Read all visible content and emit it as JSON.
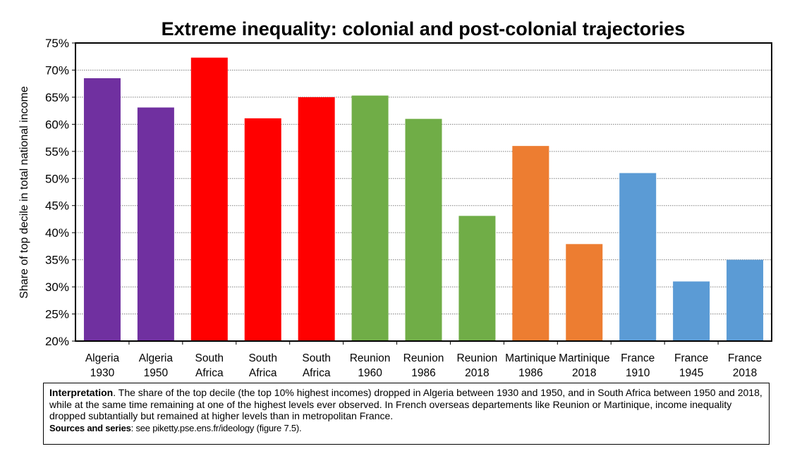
{
  "chart_data": {
    "type": "bar",
    "title": "Extreme inequality: colonial and post-colonial trajectories",
    "ylabel": "Share of top decile in total national income",
    "xlabel": "",
    "ylim": [
      0.2,
      0.75
    ],
    "ytick_labels": [
      "20%",
      "25%",
      "30%",
      "35%",
      "40%",
      "45%",
      "50%",
      "55%",
      "60%",
      "65%",
      "70%",
      "75%"
    ],
    "grid": "horizontal dotted",
    "categories": [
      [
        "Algeria",
        "1930"
      ],
      [
        "Algeria",
        "1950"
      ],
      [
        "South",
        "Africa"
      ],
      [
        "South",
        "Africa"
      ],
      [
        "South",
        "Africa"
      ],
      [
        "Reunion",
        "1960"
      ],
      [
        "Reunion",
        "1986"
      ],
      [
        "Reunion",
        "2018"
      ],
      [
        "Martinique",
        "1986"
      ],
      [
        "Martinique",
        "2018"
      ],
      [
        "France",
        "1910"
      ],
      [
        "France",
        "1945"
      ],
      [
        "France",
        "2018"
      ]
    ],
    "values": [
      0.685,
      0.631,
      0.723,
      0.611,
      0.65,
      0.653,
      0.61,
      0.431,
      0.56,
      0.379,
      0.51,
      0.31,
      0.35
    ],
    "colors": [
      "#7030a0",
      "#7030a0",
      "#ff0000",
      "#ff0000",
      "#ff0000",
      "#70ad47",
      "#70ad47",
      "#70ad47",
      "#ed7d31",
      "#ed7d31",
      "#5b9bd5",
      "#5b9bd5",
      "#5b9bd5"
    ]
  },
  "note": {
    "lead": "Interpretation",
    "text": ". The share of the top decile (the top 10% highest incomes) dropped in Algeria between 1930 and 1950, and in South Africa between 1950 and 2018, while at the same time remaining at one of the highest levels ever observed. In French overseas departements like Reunion or Martinique, income inequality dropped subtantially but remained at higher levels than in metropolitan France.",
    "source_lead": "Sources and series",
    "source_text": ": see piketty.pse.ens.fr/ideology (figure 7.5)."
  }
}
